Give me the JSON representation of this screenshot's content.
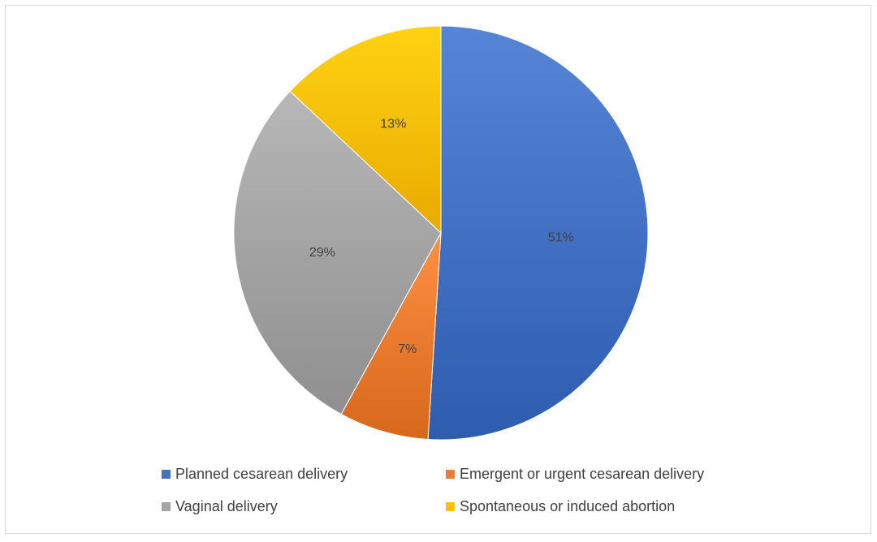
{
  "chart_data": {
    "type": "pie",
    "title": "",
    "slices": [
      {
        "label": "Planned cesarean delivery",
        "value": 51,
        "value_label": "51%",
        "color": "#4472C4"
      },
      {
        "label": "Emergent or urgent cesarean delivery",
        "value": 7,
        "value_label": "7%",
        "color": "#ED7D31"
      },
      {
        "label": "Vaginal delivery",
        "value": 29,
        "value_label": "29%",
        "color": "#A5A5A5"
      },
      {
        "label": "Spontaneous or induced abortion",
        "value": 13,
        "value_label": "13%",
        "color": "#FFC000"
      }
    ],
    "start_angle_deg": 0,
    "direction": "clockwise",
    "legend_position": "bottom",
    "data_labels": true
  },
  "legend": {
    "items": [
      {
        "label": "Planned cesarean delivery",
        "color": "#4472C4"
      },
      {
        "label": "Emergent or urgent cesarean delivery",
        "color": "#ED7D31"
      },
      {
        "label": "Vaginal delivery",
        "color": "#A5A5A5"
      },
      {
        "label": "Spontaneous or induced abortion",
        "color": "#FFC000"
      }
    ]
  }
}
